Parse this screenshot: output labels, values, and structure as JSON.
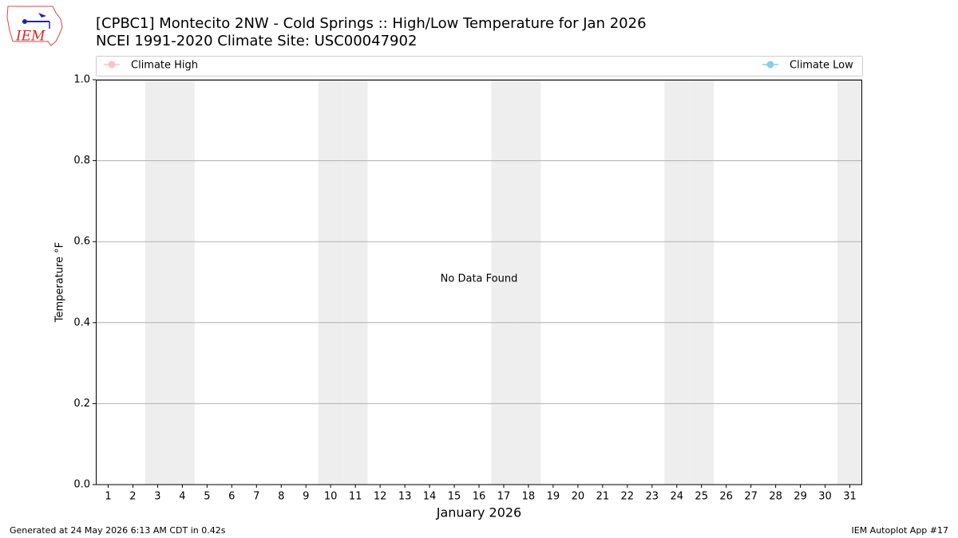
{
  "chart_data": {
    "type": "line",
    "title": "[CPBC1] Montecito 2NW - Cold Springs :: High/Low Temperature for Jan 2026",
    "subtitle": "NCEI 1991-2020 Climate Site: USC00047902",
    "logo_text": "IEM",
    "x_label": "January 2026",
    "y_label": "Temperature °F",
    "annotation": "No Data Found",
    "footer_left": "Generated at 24 May 2026 6:13 AM CDT in 0.42s",
    "footer_right": "IEM Autoplot App #17",
    "x": [
      1,
      2,
      3,
      4,
      5,
      6,
      7,
      8,
      9,
      10,
      11,
      12,
      13,
      14,
      15,
      16,
      17,
      18,
      19,
      20,
      21,
      22,
      23,
      24,
      25,
      26,
      27,
      28,
      29,
      30,
      31
    ],
    "xlim": [
      0.5,
      31.5
    ],
    "xticks": [
      1,
      2,
      3,
      4,
      5,
      6,
      7,
      8,
      9,
      10,
      11,
      12,
      13,
      14,
      15,
      16,
      17,
      18,
      19,
      20,
      21,
      22,
      23,
      24,
      25,
      26,
      27,
      28,
      29,
      30,
      31
    ],
    "shaded_days": [
      3,
      4,
      10,
      11,
      17,
      18,
      24,
      25,
      31
    ],
    "shade_color": "#eeeeee",
    "ylim": [
      0,
      1
    ],
    "yticks": [
      {
        "value": 0,
        "label": "0.0"
      },
      {
        "value": 0.2,
        "label": "0.2"
      },
      {
        "value": 0.4,
        "label": "0.4"
      },
      {
        "value": 0.6,
        "label": "0.6"
      },
      {
        "value": 0.8,
        "label": "0.8"
      },
      {
        "value": 1,
        "label": "1.0"
      }
    ],
    "grid": true,
    "series": [
      {
        "name": "Climate High",
        "color": "#ffc0cb",
        "values": [
          null,
          null,
          null,
          null,
          null,
          null,
          null,
          null,
          null,
          null,
          null,
          null,
          null,
          null,
          null,
          null,
          null,
          null,
          null,
          null,
          null,
          null,
          null,
          null,
          null,
          null,
          null,
          null,
          null,
          null,
          null
        ]
      },
      {
        "name": "Climate Low",
        "color": "#87ceeb",
        "values": [
          null,
          null,
          null,
          null,
          null,
          null,
          null,
          null,
          null,
          null,
          null,
          null,
          null,
          null,
          null,
          null,
          null,
          null,
          null,
          null,
          null,
          null,
          null,
          null,
          null,
          null,
          null,
          null,
          null,
          null,
          null
        ]
      }
    ]
  }
}
